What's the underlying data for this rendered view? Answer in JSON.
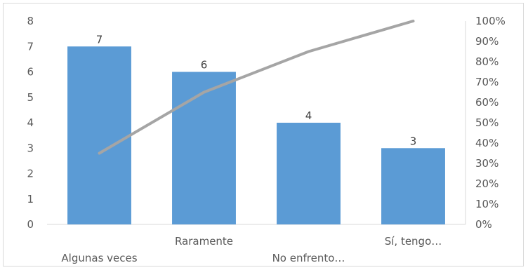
{
  "chart_data": {
    "type": "bar",
    "categories": [
      "Algunas veces",
      "Raramente",
      "No enfrento…",
      "Sí, tengo…"
    ],
    "series": [
      {
        "type": "bar",
        "values": [
          7,
          6,
          4,
          3
        ],
        "color": "#5b9bd5"
      },
      {
        "type": "line",
        "axis": "right",
        "values": [
          0.35,
          0.65,
          0.85,
          1.0
        ],
        "color": "#a5a5a5"
      }
    ],
    "y_left": {
      "range": [
        0,
        8
      ],
      "ticks": [
        "0",
        "1",
        "2",
        "3",
        "4",
        "5",
        "6",
        "7",
        "8"
      ]
    },
    "y_right": {
      "range": [
        0,
        1
      ],
      "ticks": [
        "0%",
        "10%",
        "20%",
        "30%",
        "40%",
        "50%",
        "60%",
        "70%",
        "80%",
        "90%",
        "100%"
      ]
    },
    "data_labels": [
      "7",
      "6",
      "4",
      "3"
    ],
    "grid": false,
    "legend": "none"
  }
}
